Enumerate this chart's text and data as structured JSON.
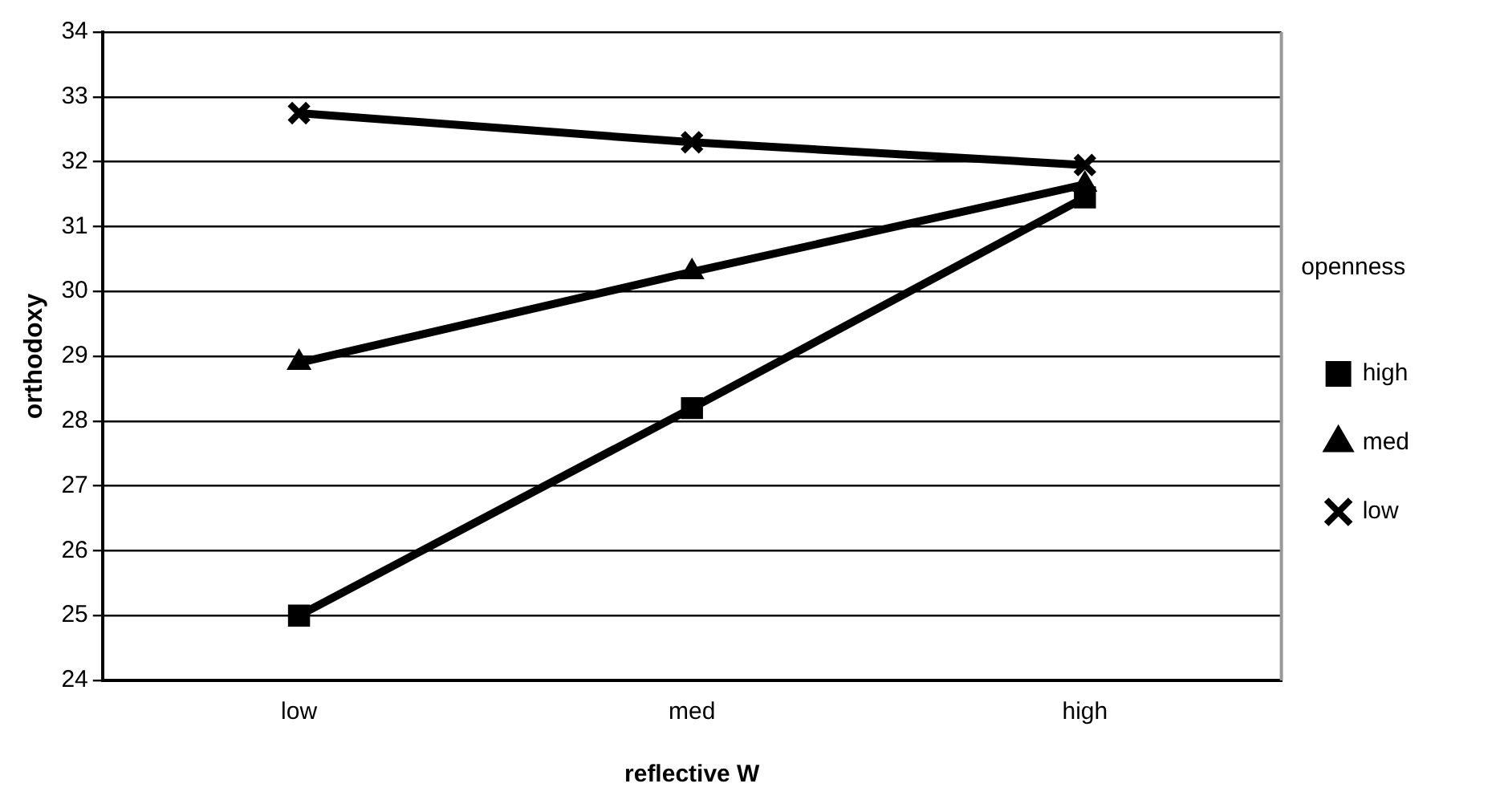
{
  "chart_data": {
    "type": "line",
    "xlabel": "reflective W",
    "ylabel": "orthodoxy",
    "legend_title": "openness",
    "categories": [
      "low",
      "med",
      "high"
    ],
    "series": [
      {
        "name": "high",
        "color": "#000000",
        "marker": "square",
        "values": [
          25.0,
          28.2,
          31.45
        ]
      },
      {
        "name": "med",
        "color": "#000000",
        "marker": "triangle",
        "values": [
          28.9,
          30.3,
          31.65
        ]
      },
      {
        "name": "low",
        "color": "#000000",
        "marker": "cross",
        "values": [
          32.75,
          32.3,
          31.95
        ]
      }
    ],
    "ylim": [
      24,
      34
    ],
    "yticks": [
      24,
      25,
      26,
      27,
      28,
      29,
      30,
      31,
      32,
      33,
      34
    ],
    "grid": "y",
    "legend": "right"
  }
}
